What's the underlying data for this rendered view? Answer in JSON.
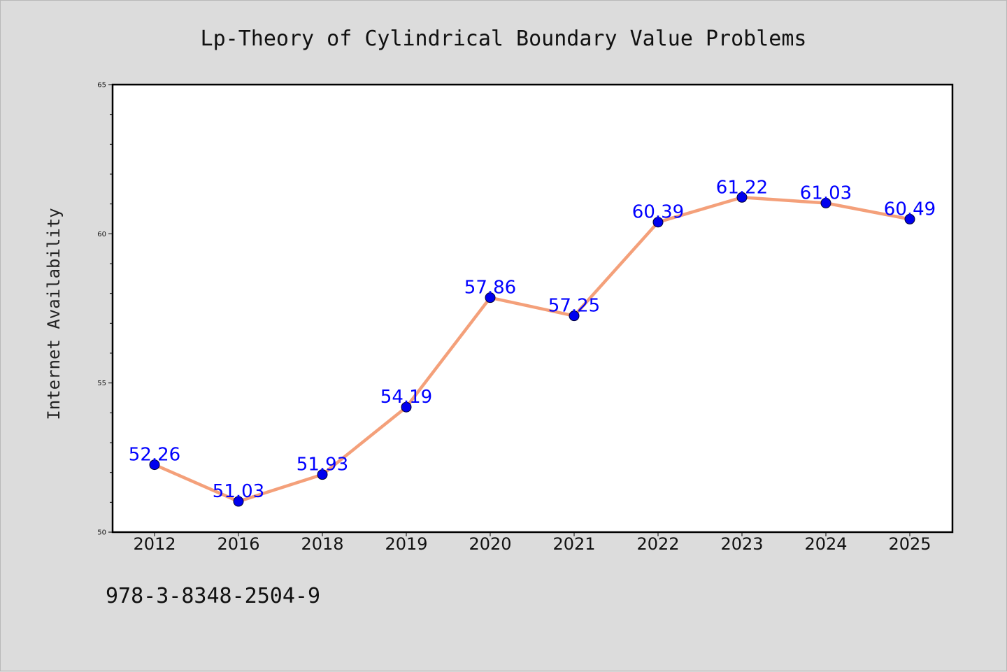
{
  "chart_data": {
    "type": "line",
    "title": "Lp-Theory of Cylindrical Boundary Value Problems",
    "xlabel": "",
    "ylabel": "Internet Availability",
    "categories": [
      "2012",
      "2016",
      "2018",
      "2019",
      "2020",
      "2021",
      "2022",
      "2023",
      "2024",
      "2025"
    ],
    "values": [
      52.26,
      51.03,
      51.93,
      54.19,
      57.86,
      57.25,
      60.39,
      61.22,
      61.03,
      60.49
    ],
    "data_labels": [
      "52.26",
      "51.03",
      "51.93",
      "54.19",
      "57.86",
      "57.25",
      "60.39",
      "61.22",
      "61.03",
      "60.49"
    ],
    "ylim": [
      50,
      65
    ],
    "yticks": [
      "50",
      "55",
      "60",
      "65"
    ],
    "grid": false,
    "legend": "none",
    "line_color": "#f4a07a",
    "marker_color": "#0000ee",
    "label_color": "#0000ff"
  },
  "footer": {
    "isbn": "978-3-8348-2504-9"
  }
}
